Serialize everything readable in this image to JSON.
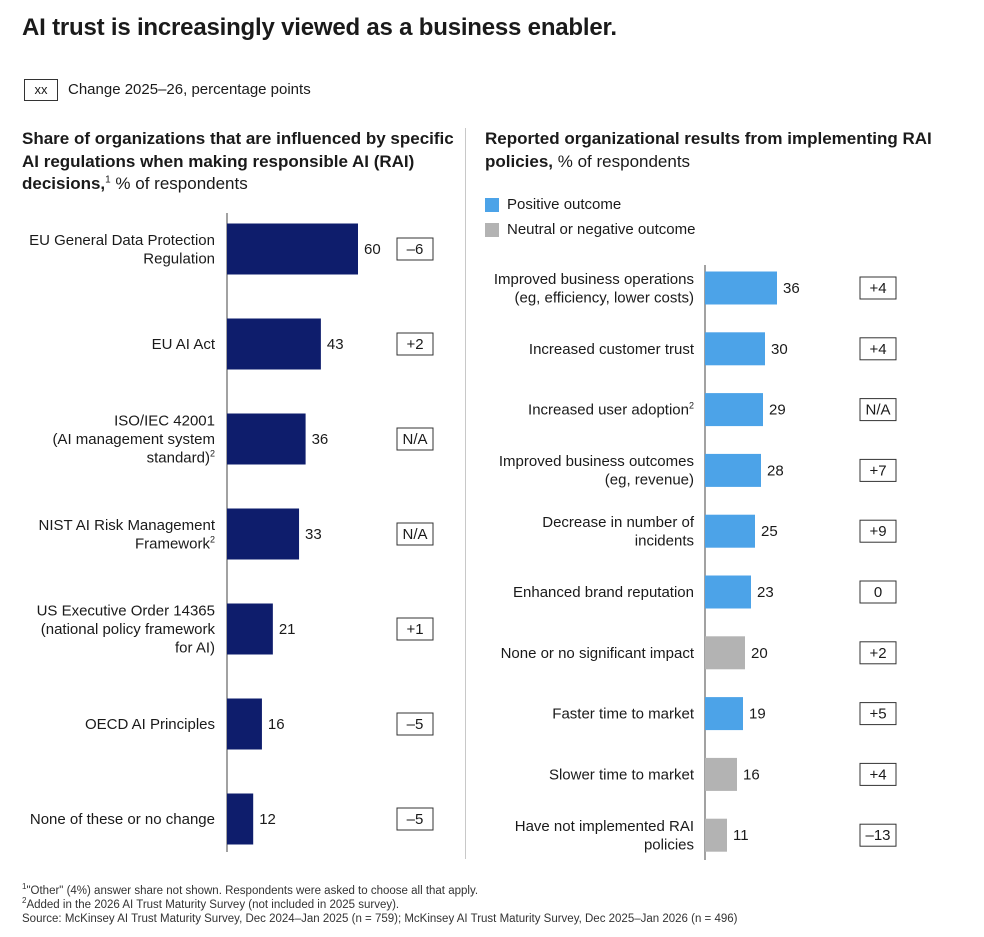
{
  "title": "AI trust is increasingly viewed as a business enabler.",
  "legend_change": {
    "box": "xx",
    "text": "Change 2025–26, percentage points"
  },
  "colors": {
    "dark_navy": "#0e1d6c",
    "positive": "#4ca3e8",
    "neutral": "#b3b3b3"
  },
  "chart_data": [
    {
      "type": "bar",
      "orientation": "horizontal",
      "title_bold": "Share of organizations that are influenced by specific AI regulations when making responsible AI (RAI) decisions,",
      "title_sup": "1",
      "title_unit": " % of respondents",
      "categories": [
        "EU General Data Protection Regulation",
        "EU AI Act",
        "ISO/IEC 42001 (AI management system standard)²",
        "NIST AI Risk Management Framework²",
        "US Executive Order 14365 (national policy framework for AI)",
        "OECD AI Principles",
        "None of these or no change"
      ],
      "label_lines": [
        [
          "EU General Data Protection",
          "Regulation"
        ],
        [
          "EU AI Act"
        ],
        [
          "ISO/IEC 42001",
          "(AI management system",
          "standard)²"
        ],
        [
          "NIST AI Risk Management",
          "Framework²"
        ],
        [
          "US Executive Order 14365",
          "(national policy framework",
          "for AI)"
        ],
        [
          "OECD AI Principles"
        ],
        [
          "None of these or no change"
        ]
      ],
      "values": [
        60,
        43,
        36,
        33,
        21,
        16,
        12
      ],
      "changes": [
        "–6",
        "+2",
        "N/A",
        "N/A",
        "+1",
        "–5",
        "–5"
      ],
      "xlim": [
        0,
        60
      ]
    },
    {
      "type": "bar",
      "orientation": "horizontal",
      "title_bold": "Reported organizational results from implementing RAI policies,",
      "title_unit": " % of respondents",
      "legend": [
        "Positive outcome",
        "Neutral or negative outcome"
      ],
      "categories": [
        "Improved business operations (eg, efficiency, lower costs)",
        "Increased customer trust",
        "Increased user adoption²",
        "Improved business outcomes (eg, revenue)",
        "Decrease in number of incidents",
        "Enhanced brand reputation",
        "None or no significant impact",
        "Faster time to market",
        "Slower time to market",
        "Have not implemented RAI policies"
      ],
      "label_lines": [
        [
          "Improved business operations",
          "(eg, efficiency, lower costs)"
        ],
        [
          "Increased customer trust"
        ],
        [
          "Increased user adoption²"
        ],
        [
          "Improved business outcomes",
          "(eg, revenue)"
        ],
        [
          "Decrease in number of",
          "incidents"
        ],
        [
          "Enhanced brand reputation"
        ],
        [
          "None or no significant impact"
        ],
        [
          "Faster time to market"
        ],
        [
          "Slower time to market"
        ],
        [
          "Have not implemented RAI",
          "policies"
        ]
      ],
      "values": [
        36,
        30,
        29,
        28,
        25,
        23,
        20,
        19,
        16,
        11
      ],
      "outcome": [
        "positive",
        "positive",
        "positive",
        "positive",
        "positive",
        "positive",
        "neutral",
        "positive",
        "neutral",
        "neutral"
      ],
      "changes": [
        "+4",
        "+4",
        "N/A",
        "+7",
        "+9",
        "0",
        "+2",
        "+5",
        "+4",
        "–13"
      ],
      "xlim": [
        0,
        36
      ]
    }
  ],
  "footnotes": [
    {
      "sup": "1",
      "text": "\"Other\" (4%) answer share not shown. Respondents were asked to choose all that apply."
    },
    {
      "sup": "2",
      "text": "Added in the 2026 AI Trust Maturity Survey (not included in 2025 survey)."
    },
    {
      "sup": "",
      "text": " Source: McKinsey AI Trust Maturity Survey, Dec 2024–Jan 2025 (n = 759); McKinsey AI Trust Maturity Survey, Dec 2025–Jan 2026 (n = 496)"
    }
  ]
}
